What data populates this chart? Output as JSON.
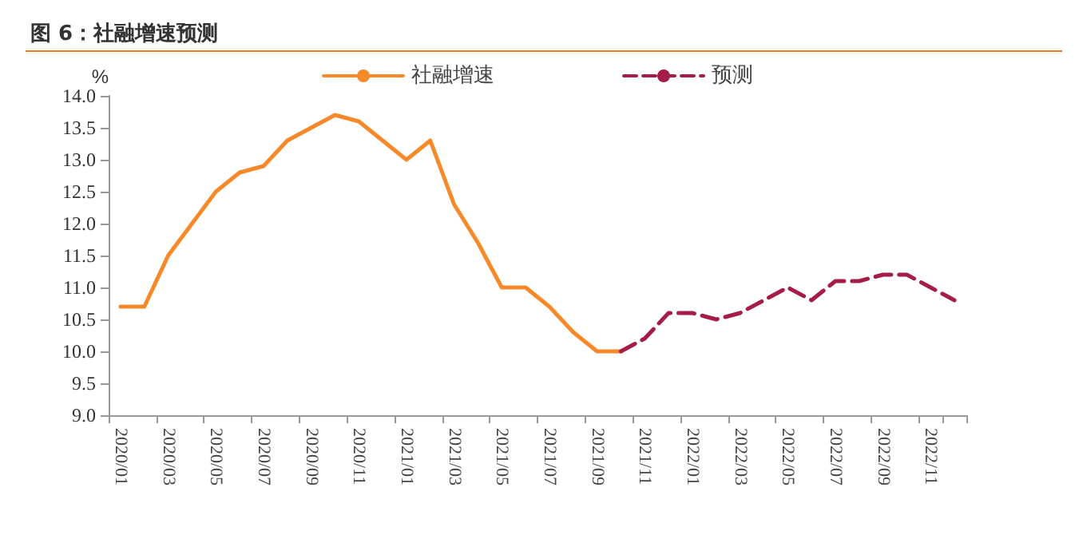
{
  "chart_data": {
    "type": "line",
    "title": "图 6：社融增速预测",
    "ylabel": "%",
    "categories": [
      "2020/01",
      null,
      "2020/03",
      null,
      "2020/05",
      null,
      "2020/07",
      null,
      "2020/09",
      null,
      "2020/11",
      null,
      "2021/01",
      null,
      "2021/03",
      null,
      "2021/05",
      null,
      "2021/07",
      null,
      "2021/09",
      null,
      "2021/11",
      null,
      "2022/01",
      null,
      "2022/03",
      null,
      "2022/05",
      null,
      "2022/07",
      null,
      "2022/09",
      null,
      "2022/11",
      null
    ],
    "series": [
      {
        "name": "社融增速",
        "color": "#f7892b",
        "line_style": "solid",
        "values": [
          10.7,
          10.7,
          11.5,
          12.0,
          12.5,
          12.8,
          12.9,
          13.3,
          13.5,
          13.7,
          13.6,
          13.3,
          13.0,
          13.3,
          12.3,
          11.7,
          11.0,
          11.0,
          10.7,
          10.3,
          10.0,
          10.0,
          null,
          null,
          null,
          null,
          null,
          null,
          null,
          null,
          null,
          null,
          null,
          null,
          null,
          null
        ]
      },
      {
        "name": "预测",
        "color": "#a51c46",
        "line_style": "dashed",
        "values": [
          null,
          null,
          null,
          null,
          null,
          null,
          null,
          null,
          null,
          null,
          null,
          null,
          null,
          null,
          null,
          null,
          null,
          null,
          null,
          null,
          null,
          10.0,
          10.2,
          10.6,
          10.6,
          10.5,
          10.6,
          10.8,
          11.0,
          10.8,
          11.1,
          11.1,
          11.2,
          11.2,
          11.0,
          10.8
        ]
      }
    ],
    "ylim": [
      9.0,
      14.0
    ],
    "yticks": [
      {
        "value": 9,
        "label": "9.0"
      },
      {
        "value": 9.5,
        "label": "9.5"
      },
      {
        "value": 10,
        "label": "10.0"
      },
      {
        "value": 10.5,
        "label": "10.5"
      },
      {
        "value": 11,
        "label": "11.0"
      },
      {
        "value": 11.5,
        "label": "11.5"
      },
      {
        "value": 12,
        "label": "12.0"
      },
      {
        "value": 12.5,
        "label": "12.5"
      },
      {
        "value": 13,
        "label": "13.0"
      },
      {
        "value": 13.5,
        "label": "13.5"
      },
      {
        "value": 14,
        "label": "14.0"
      }
    ],
    "grid": false,
    "legend": "top",
    "marker": "none"
  }
}
